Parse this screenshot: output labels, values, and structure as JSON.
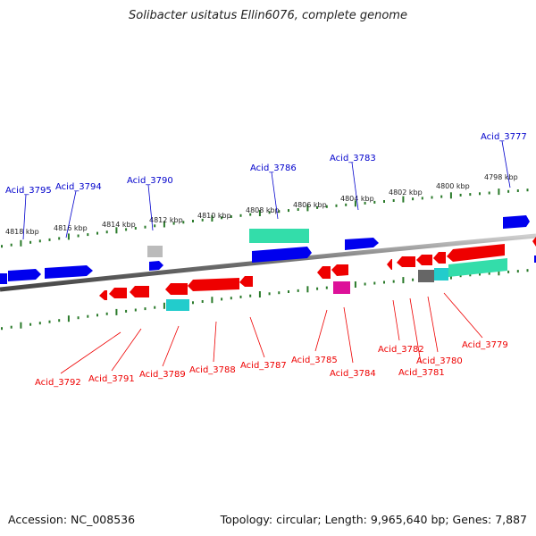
{
  "title": "Solibacter usitatus Ellin6076, complete genome",
  "footer": {
    "accession": "Accession: NC_008536",
    "stats": "Topology: circular; Length: 9,965,640 bp; Genes: 7,887"
  },
  "colors": {
    "forward": "#0000ee",
    "reverse": "#ee0000",
    "backbone": "#777777",
    "ruler": "#2a7a2a",
    "rna_green": "#33ddaa",
    "cyan": "#22cccc",
    "magenta": "#dd1199",
    "grey": "#bbbbbb",
    "dark_grey": "#666666"
  },
  "ruler_labels": [
    "4818 kbp",
    "4816 kbp",
    "4814 kbp",
    "4812 kbp",
    "4810 kbp",
    "4808 kbp",
    "4806 kbp",
    "4804 kbp",
    "4802 kbp",
    "4800 kbp",
    "4798 kbp"
  ],
  "forward_genes": [
    "Acid_3795",
    "Acid_3794",
    "Acid_3790",
    "Acid_3786",
    "Acid_3783",
    "Acid_3777"
  ],
  "reverse_genes": [
    "Acid_3792",
    "Acid_3791",
    "Acid_3789",
    "Acid_3788",
    "Acid_3787",
    "Acid_3785",
    "Acid_3784",
    "Acid_3782",
    "Acid_3781",
    "Acid_3780",
    "Acid_3779"
  ]
}
